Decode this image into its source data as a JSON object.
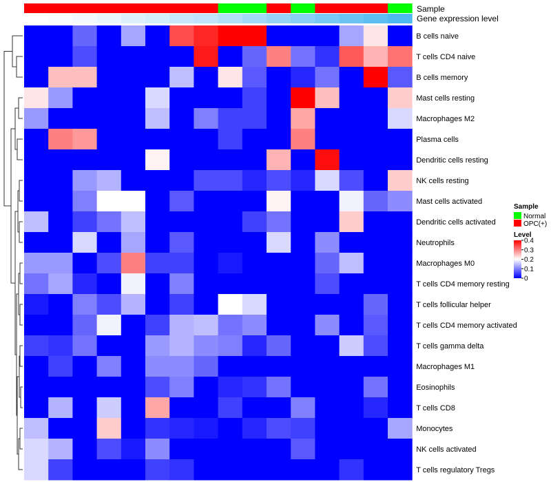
{
  "chart_data": {
    "type": "heatmap",
    "title": "",
    "annotation_tracks": {
      "sample_label": "Sample",
      "level_label": "Gene expression level",
      "sample_groups": [
        "OPC(+)",
        "OPC(+)",
        "OPC(+)",
        "OPC(+)",
        "OPC(+)",
        "OPC(+)",
        "OPC(+)",
        "OPC(+)",
        "Normal",
        "Normal",
        "OPC(+)",
        "Normal",
        "OPC(+)",
        "OPC(+)",
        "OPC(+)",
        "Normal"
      ],
      "gene_level": [
        0.0,
        0.01,
        0.02,
        0.03,
        0.05,
        0.06,
        0.08,
        0.09,
        0.11,
        0.13,
        0.15,
        0.17,
        0.19,
        0.21,
        0.23,
        0.25
      ]
    },
    "rows": [
      "B cells naive",
      "T cells CD4 naive",
      "B cells memory",
      "Mast cells resting",
      "Macrophages M2",
      "Plasma cells",
      "Dendritic cells resting",
      "NK cells resting",
      "Mast cells activated",
      "Dendritic cells activated",
      "Neutrophils",
      "Macrophages M0",
      "T cells CD4 memory resting",
      "T cells follicular helper",
      "T cells CD4 memory activated",
      "T cells gamma delta",
      "Macrophages M1",
      "Eosinophils",
      "T cells CD8",
      "Monocytes",
      "NK cells activated",
      "T cells regulatory  Tregs"
    ],
    "values": [
      [
        0.0,
        0.0,
        0.08,
        0.0,
        0.13,
        0.0,
        0.34,
        0.37,
        0.4,
        0.4,
        0.0,
        0.0,
        0.0,
        0.13,
        0.22,
        0.0
      ],
      [
        0.0,
        0.0,
        0.06,
        0.0,
        0.0,
        0.0,
        0.0,
        0.38,
        0.0,
        0.08,
        0.3,
        0.09,
        0.04,
        0.33,
        0.26,
        0.31
      ],
      [
        0.0,
        0.25,
        0.25,
        0.0,
        0.0,
        0.0,
        0.15,
        0.0,
        0.22,
        0.07,
        0.0,
        0.03,
        0.09,
        0.0,
        0.4,
        0.07
      ],
      [
        0.22,
        0.12,
        0.0,
        0.0,
        0.0,
        0.17,
        0.0,
        0.0,
        0.0,
        0.05,
        0.0,
        0.4,
        0.25,
        0.0,
        0.0,
        0.24
      ],
      [
        0.12,
        0.0,
        0.0,
        0.0,
        0.0,
        0.15,
        0.0,
        0.1,
        0.05,
        0.05,
        0.0,
        0.27,
        0.0,
        0.0,
        0.0,
        0.17
      ],
      [
        0.0,
        0.3,
        0.28,
        0.0,
        0.0,
        0.0,
        0.0,
        0.0,
        0.05,
        0.0,
        0.0,
        0.3,
        0.0,
        0.0,
        0.0,
        0.0
      ],
      [
        0.0,
        0.0,
        0.0,
        0.0,
        0.0,
        0.21,
        0.0,
        0.0,
        0.0,
        0.0,
        0.26,
        0.0,
        0.39,
        0.0,
        0.0,
        0.0
      ],
      [
        0.0,
        0.0,
        0.12,
        0.14,
        0.0,
        0.0,
        0.0,
        0.06,
        0.06,
        0.03,
        0.06,
        0.03,
        0.17,
        0.06,
        0.0,
        0.24
      ],
      [
        0.0,
        0.0,
        0.1,
        0.2,
        0.2,
        0.0,
        0.07,
        0.0,
        0.0,
        0.0,
        0.21,
        0.0,
        0.0,
        0.19,
        0.08,
        0.11
      ],
      [
        0.15,
        0.0,
        0.05,
        0.09,
        0.15,
        0.0,
        0.0,
        0.0,
        0.0,
        0.05,
        0.09,
        0.0,
        0.0,
        0.24,
        0.0,
        0.0
      ],
      [
        0.0,
        0.0,
        0.17,
        0.0,
        0.13,
        0.0,
        0.07,
        0.0,
        0.0,
        0.0,
        0.17,
        0.0,
        0.11,
        0.0,
        0.0,
        0.0
      ],
      [
        0.12,
        0.12,
        0.0,
        0.06,
        0.3,
        0.05,
        0.05,
        0.0,
        0.02,
        0.0,
        0.0,
        0.0,
        0.08,
        0.15,
        0.0,
        0.0
      ],
      [
        0.09,
        0.13,
        0.03,
        0.0,
        0.19,
        0.0,
        0.1,
        0.0,
        0.0,
        0.0,
        0.0,
        0.0,
        0.06,
        0.0,
        0.0,
        0.0
      ],
      [
        0.02,
        0.0,
        0.1,
        0.06,
        0.14,
        0.0,
        0.05,
        0.0,
        0.2,
        0.17,
        0.0,
        0.0,
        0.0,
        0.0,
        0.08,
        0.0
      ],
      [
        0.0,
        0.0,
        0.08,
        0.19,
        0.0,
        0.05,
        0.14,
        0.15,
        0.09,
        0.11,
        0.0,
        0.0,
        0.11,
        0.0,
        0.07,
        0.0
      ],
      [
        0.05,
        0.04,
        0.09,
        0.0,
        0.0,
        0.12,
        0.14,
        0.11,
        0.1,
        0.03,
        0.08,
        0.0,
        0.0,
        0.16,
        0.06,
        0.0
      ],
      [
        0.0,
        0.05,
        0.0,
        0.1,
        0.0,
        0.11,
        0.11,
        0.08,
        0.0,
        0.0,
        0.0,
        0.0,
        0.0,
        0.0,
        0.0,
        0.0
      ],
      [
        0.0,
        0.0,
        0.0,
        0.0,
        0.0,
        0.06,
        0.1,
        0.0,
        0.03,
        0.04,
        0.09,
        0.0,
        0.0,
        0.0,
        0.09,
        0.0
      ],
      [
        0.0,
        0.14,
        0.0,
        0.16,
        0.0,
        0.27,
        0.0,
        0.0,
        0.05,
        0.0,
        0.0,
        0.1,
        0.0,
        0.0,
        0.03,
        0.0
      ],
      [
        0.15,
        0.0,
        0.0,
        0.24,
        0.0,
        0.04,
        0.03,
        0.02,
        0.0,
        0.03,
        0.06,
        0.05,
        0.0,
        0.0,
        0.0,
        0.13
      ],
      [
        0.17,
        0.14,
        0.0,
        0.06,
        0.02,
        0.11,
        0.0,
        0.0,
        0.0,
        0.0,
        0.0,
        0.07,
        0.0,
        0.0,
        0.0,
        0.0
      ],
      [
        0.17,
        0.05,
        0.0,
        0.0,
        0.0,
        0.05,
        0.04,
        0.0,
        0.0,
        0.0,
        0.0,
        0.0,
        0.0,
        0.04,
        0.0,
        0.0
      ]
    ],
    "color_scale": {
      "min": 0,
      "mid": 0.2,
      "max": 0.4,
      "low": "#0000ff",
      "midColor": "#ffffff",
      "high": "#ff0000"
    },
    "level_colors": {
      "low": "#ffffff",
      "high": "#4fb8f0"
    },
    "legend": {
      "position": "right",
      "sample_title": "Sample",
      "sample_entries": [
        {
          "label": "Normal",
          "color": "#00ff00"
        },
        {
          "label": "OPC(+)",
          "color": "#ff0000"
        }
      ],
      "level_title": "Level",
      "level_ticks": [
        "0.4",
        "0.3",
        "0.2",
        "0.1",
        "0"
      ],
      "level_tick_values": [
        0.4,
        0.3,
        0.2,
        0.1,
        0
      ]
    },
    "dendrogram": "row-clustering tree on left"
  }
}
